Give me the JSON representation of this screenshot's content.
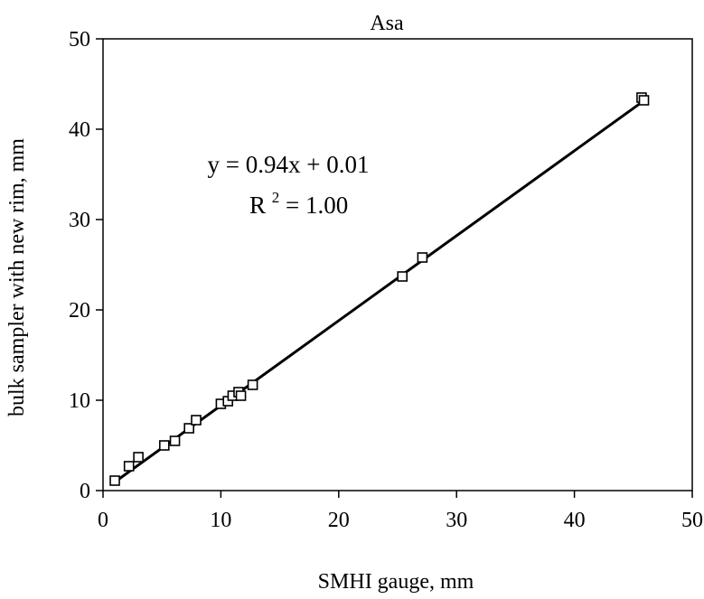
{
  "chart_data": {
    "type": "scatter",
    "title": "Asa",
    "xlabel": "SMHI gauge, mm",
    "ylabel": "bulk sampler with new rim, mm",
    "xlim": [
      0,
      50
    ],
    "ylim": [
      0,
      50
    ],
    "xticks": [
      0,
      10,
      20,
      30,
      40,
      50
    ],
    "yticks": [
      0,
      10,
      20,
      30,
      40,
      50
    ],
    "grid": false,
    "legend": "none",
    "series": [
      {
        "marker": "open-square",
        "color": "#000000",
        "points": [
          {
            "x": 1.0,
            "y": 1.1
          },
          {
            "x": 2.2,
            "y": 2.7
          },
          {
            "x": 3.0,
            "y": 3.7
          },
          {
            "x": 5.2,
            "y": 5.0
          },
          {
            "x": 6.1,
            "y": 5.5
          },
          {
            "x": 7.3,
            "y": 6.9
          },
          {
            "x": 7.9,
            "y": 7.8
          },
          {
            "x": 10.0,
            "y": 9.6
          },
          {
            "x": 10.6,
            "y": 9.9
          },
          {
            "x": 11.0,
            "y": 10.5
          },
          {
            "x": 11.5,
            "y": 10.9
          },
          {
            "x": 11.7,
            "y": 10.5
          },
          {
            "x": 12.7,
            "y": 11.7
          },
          {
            "x": 25.4,
            "y": 23.7
          },
          {
            "x": 27.1,
            "y": 25.8
          },
          {
            "x": 45.7,
            "y": 43.5
          },
          {
            "x": 45.9,
            "y": 43.2
          }
        ]
      }
    ],
    "trendline": {
      "slope": 0.94,
      "intercept": 0.01,
      "x_start": 1.0,
      "x_end": 45.9,
      "color": "#000000"
    },
    "annotations": {
      "equation": "y = 0.94x + 0.01",
      "r2_base": "R",
      "r2_sup": "2",
      "r2_value": " = 1.00"
    }
  }
}
